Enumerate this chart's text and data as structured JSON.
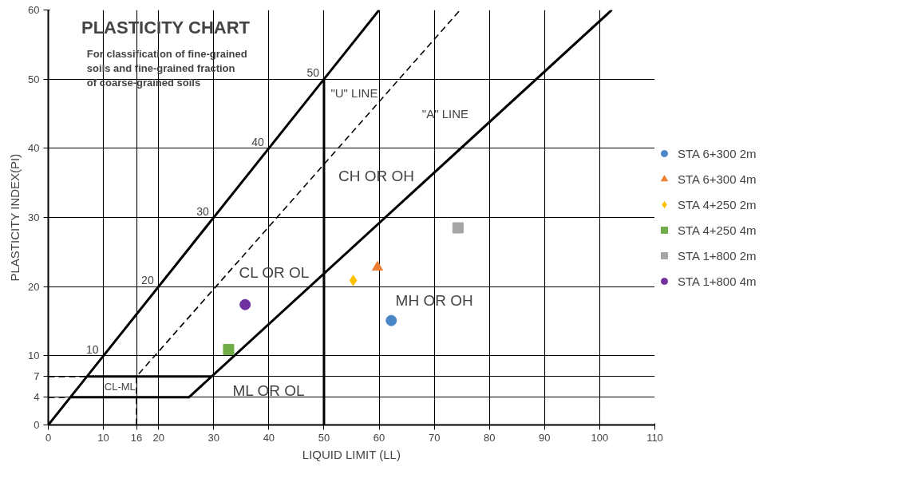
{
  "chart_data": {
    "type": "scatter",
    "title": "PLASTICITY CHART",
    "subtitle": "For classification of fine-grained\nsoils and fine-grained fraction\nof coarse-grained soils",
    "xlabel": "LIQUID LIMIT (LL)",
    "ylabel": "PLASTICITY INDEX(PI)",
    "xlim": [
      0,
      110
    ],
    "ylim": [
      0,
      60
    ],
    "xticks": [
      0,
      10,
      16,
      20,
      30,
      40,
      50,
      60,
      70,
      80,
      90,
      100,
      110
    ],
    "yticks": [
      0,
      4,
      7,
      10,
      20,
      30,
      40,
      50,
      60
    ],
    "grid": true,
    "legend": "right",
    "series": [
      {
        "type": "line",
        "color": "#000000",
        "line_style": "solid",
        "x": [
          102.2,
          25.5,
          4,
          0,
          7,
          29.6,
          7,
          50,
          50,
          50,
          60
        ],
        "values": [
          60,
          4,
          4,
          0,
          7,
          7,
          7,
          50,
          0,
          50,
          60
        ]
      },
      {
        "type": "line",
        "color": "#000000",
        "line_style": "dashed",
        "x": [
          16,
          16,
          74.7
        ],
        "values": [
          0,
          7,
          60
        ]
      },
      {
        "type": "line",
        "color": "#000000",
        "line_style": "dashed",
        "x": [
          0,
          7
        ],
        "values": [
          7,
          7
        ]
      },
      {
        "type": "line",
        "color": "#000000",
        "line_style": "dashed",
        "x": [
          0,
          4
        ],
        "values": [
          4,
          4
        ]
      },
      {
        "name": "STA 6+300 2m",
        "color": "#4a86c5",
        "marker": "circle",
        "x": [
          62.2
        ],
        "values": [
          15.1
        ]
      },
      {
        "name": "STA 6+300 4m",
        "color": "#ed7d31",
        "marker": "triangle",
        "x": [
          59.7
        ],
        "values": [
          22.8
        ]
      },
      {
        "name": "STA 4+250 2m",
        "color": "#ffc000",
        "marker": "diamond",
        "x": [
          55.3
        ],
        "values": [
          20.9
        ]
      },
      {
        "name": "STA 4+250 4m",
        "color": "#70ad47",
        "marker": "square",
        "x": [
          32.7
        ],
        "values": [
          10.9
        ]
      },
      {
        "name": "STA 1+800 2m",
        "color": "#a5a5a5",
        "marker": "square",
        "x": [
          74.3
        ],
        "values": [
          28.5
        ]
      },
      {
        "name": "STA 1+800 4m",
        "color": "#7030a0",
        "marker": "circle",
        "x": [
          35.7
        ],
        "values": [
          17.4
        ]
      }
    ],
    "annotations": [
      {
        "text": "10",
        "x": 10,
        "y": 10
      },
      {
        "text": "20",
        "x": 20,
        "y": 20
      },
      {
        "text": "30",
        "x": 30,
        "y": 30
      },
      {
        "text": "40",
        "x": 40,
        "y": 40
      },
      {
        "text": "50",
        "x": 50,
        "y": 50
      },
      "CL OR OL",
      "CH OR OH",
      "MH OR OH",
      "ML OR OL",
      "CL-ML",
      "\"U\" LINE",
      "\"A\" LINE"
    ]
  }
}
